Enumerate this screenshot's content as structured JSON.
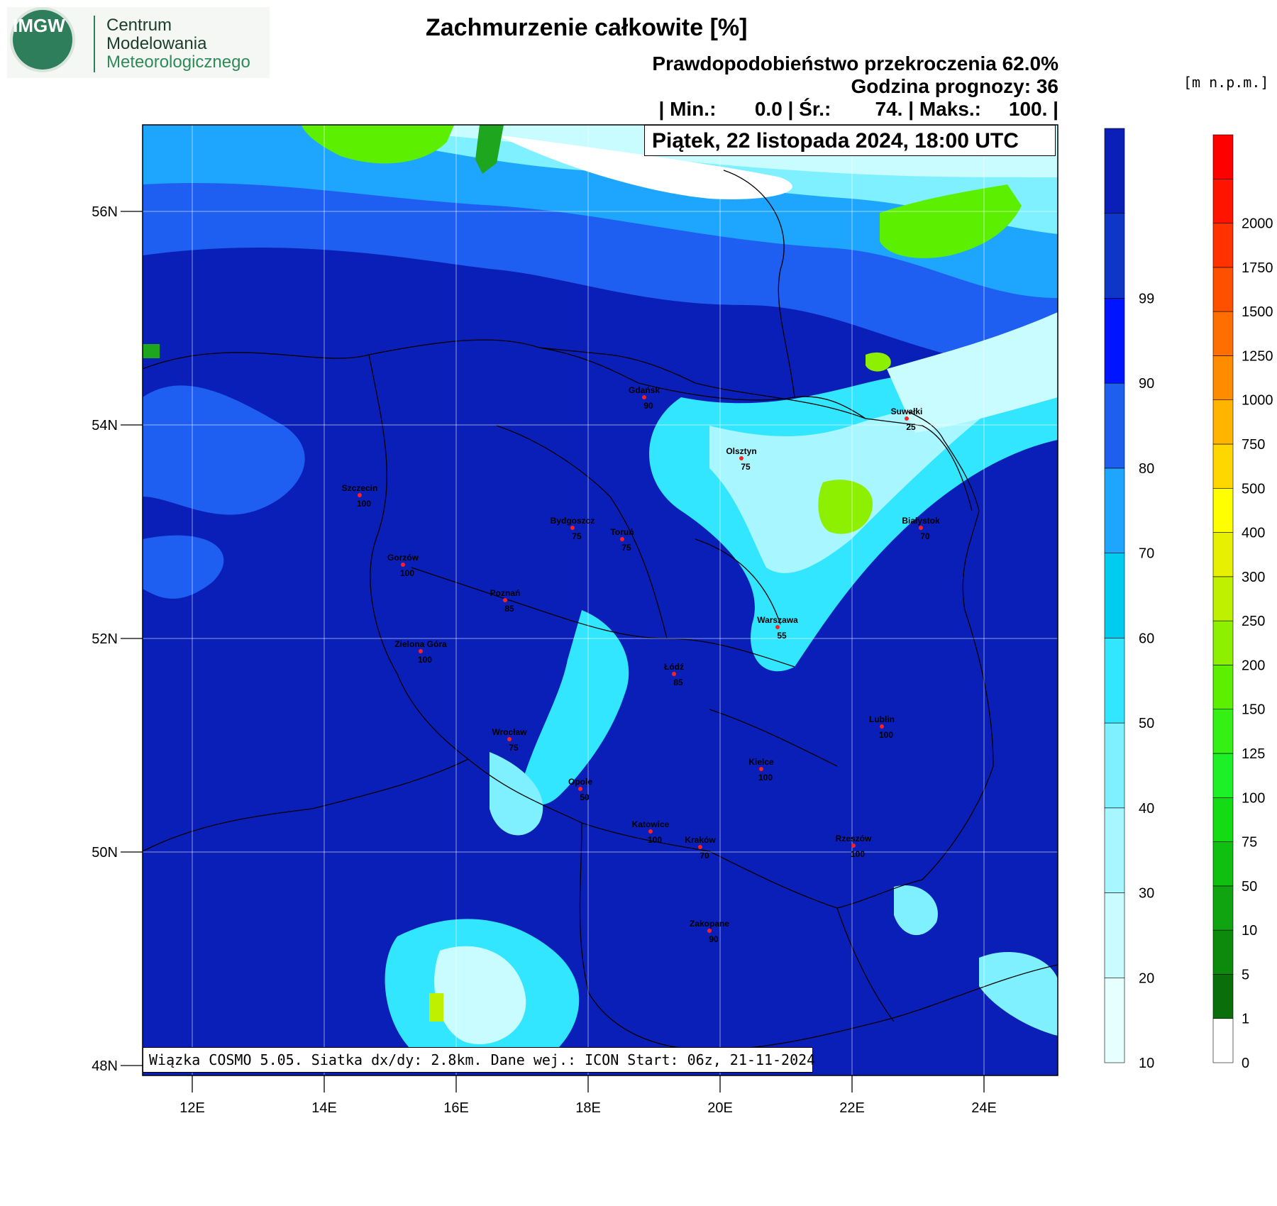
{
  "logo": {
    "emblem_text": "IMGW",
    "org_line1": "Centrum",
    "org_line2": "Modelowania",
    "org_line3": "Meteorologicznego"
  },
  "header": {
    "title": "Zachmurzenie całkowite [%]",
    "probability": "Prawdopodobieństwo przekroczenia 62.0%",
    "forecast_hour": "Godzina prognozy: 36",
    "stats": "| Min.:       0.0 | Śr.:        74. | Maks.:     100. |",
    "date": "Piątek, 22 listopada 2024, 18:00 UTC"
  },
  "footer": {
    "info": "Wiązka COSMO 5.05. Siatka dx/dy: 2.8km. Dane wej.: ICON Start: 06z, 21-11-2024"
  },
  "map": {
    "lat_ticks": [
      "56N",
      "54N",
      "52N",
      "50N",
      "48N"
    ],
    "lon_ticks": [
      "12E",
      "14E",
      "16E",
      "18E",
      "20E",
      "22E",
      "24E"
    ],
    "cities": [
      {
        "name": "Gdańsk",
        "value": "90"
      },
      {
        "name": "Olsztyn",
        "value": "75"
      },
      {
        "name": "Suwałki",
        "value": "25"
      },
      {
        "name": "Szczecin",
        "value": "100"
      },
      {
        "name": "Bydgoszcz",
        "value": "75"
      },
      {
        "name": "Toruń",
        "value": "75"
      },
      {
        "name": "Białystok",
        "value": "70"
      },
      {
        "name": "Gorzów",
        "value": "100"
      },
      {
        "name": "Poznań",
        "value": "85"
      },
      {
        "name": "Warszawa",
        "value": "55"
      },
      {
        "name": "Zielona Góra",
        "value": "100"
      },
      {
        "name": "Łódź",
        "value": "85"
      },
      {
        "name": "Lublin",
        "value": "100"
      },
      {
        "name": "Wrocław",
        "value": "75"
      },
      {
        "name": "Kielce",
        "value": "100"
      },
      {
        "name": "Opole",
        "value": "50"
      },
      {
        "name": "Katowice",
        "value": "100"
      },
      {
        "name": "Kraków",
        "value": "70"
      },
      {
        "name": "Rzeszów",
        "value": "100"
      },
      {
        "name": "Zakopane",
        "value": "90"
      }
    ]
  },
  "cloud_legend": {
    "labels": [
      "10",
      "20",
      "30",
      "40",
      "50",
      "60",
      "70",
      "80",
      "90",
      "99"
    ],
    "colors": [
      "#e6ffff",
      "#c8fcff",
      "#a8f6ff",
      "#7ef0ff",
      "#33e6ff",
      "#00ccf0",
      "#1ea6ff",
      "#1f5ff0",
      "#0015ff",
      "#0f37c7",
      "#0a1fb8"
    ]
  },
  "terrain_legend": {
    "unit": "[m n.p.m.]",
    "labels": [
      "0",
      "1",
      "5",
      "10",
      "50",
      "75",
      "100",
      "125",
      "150",
      "200",
      "250",
      "300",
      "400",
      "500",
      "750",
      "1000",
      "1250",
      "1500",
      "1750",
      "2000"
    ],
    "colors": [
      "#ffffff",
      "#0a6e0a",
      "#0c8a0c",
      "#10a510",
      "#10c010",
      "#14dc14",
      "#1ef028",
      "#34f014",
      "#5cf000",
      "#8cf000",
      "#bef000",
      "#e6f000",
      "#ffff00",
      "#ffd700",
      "#ffb400",
      "#ff8c00",
      "#ff6e00",
      "#ff5000",
      "#ff3200",
      "#ff1400",
      "#ff0000"
    ]
  }
}
